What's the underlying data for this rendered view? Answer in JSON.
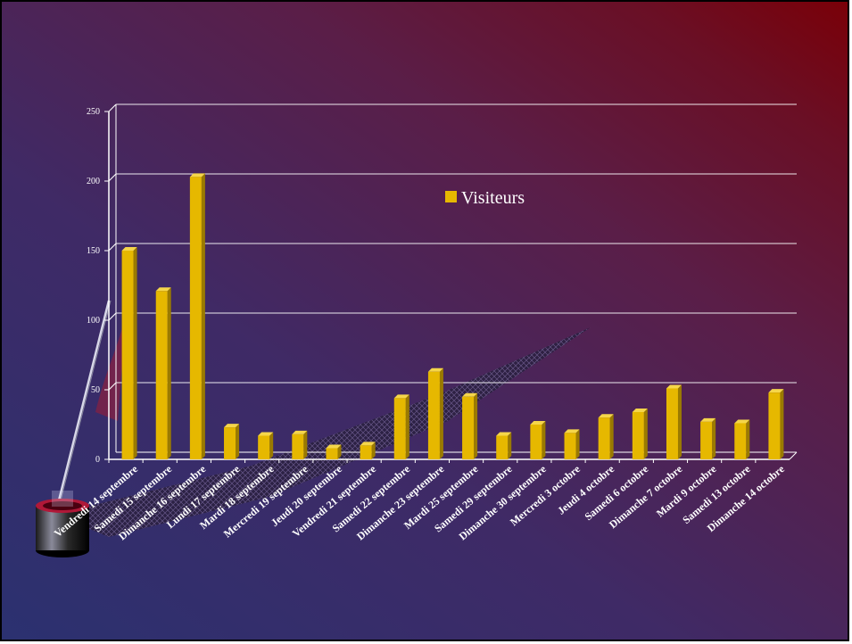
{
  "chart_data": {
    "type": "bar",
    "categories": [
      "Vendredi 14 septembre",
      "Samedi 15 septembre",
      "Dimanche 16 septembre",
      "Lundi 17 septembre",
      "Mardi 18 septembre",
      "Mercredi 19 septembre",
      "Jeudi 20 septembre",
      "Vendredi 21 septembre",
      "Samedi 22  septembre",
      "Dimanche 23 septembre",
      "Mardi 25 septembre",
      "Samedi 29 septembre",
      "Dimanche 30 septembre",
      "Mercredi 3 octobre",
      "Jeudi 4 octobre",
      "Samedi 6 octobre",
      "Dimanche 7 octobre",
      "Mardi 9 octobre",
      "Samedi 13 octobre",
      "Dimanche 14 octobre"
    ],
    "series": [
      {
        "name": "Visiteurs",
        "values": [
          150,
          121,
          203,
          23,
          17,
          18,
          8,
          10,
          44,
          63,
          45,
          17,
          25,
          19,
          30,
          34,
          51,
          27,
          26,
          48
        ]
      }
    ],
    "ylim": [
      0,
      250
    ],
    "yticks": [
      0,
      50,
      100,
      150,
      200,
      250
    ],
    "grid": true,
    "legend": "top-center",
    "colors": {
      "bar": "#e6b800",
      "bar_side": "#9a7a00",
      "bar_top": "#f5d64a",
      "grid": "#ffffff"
    }
  }
}
